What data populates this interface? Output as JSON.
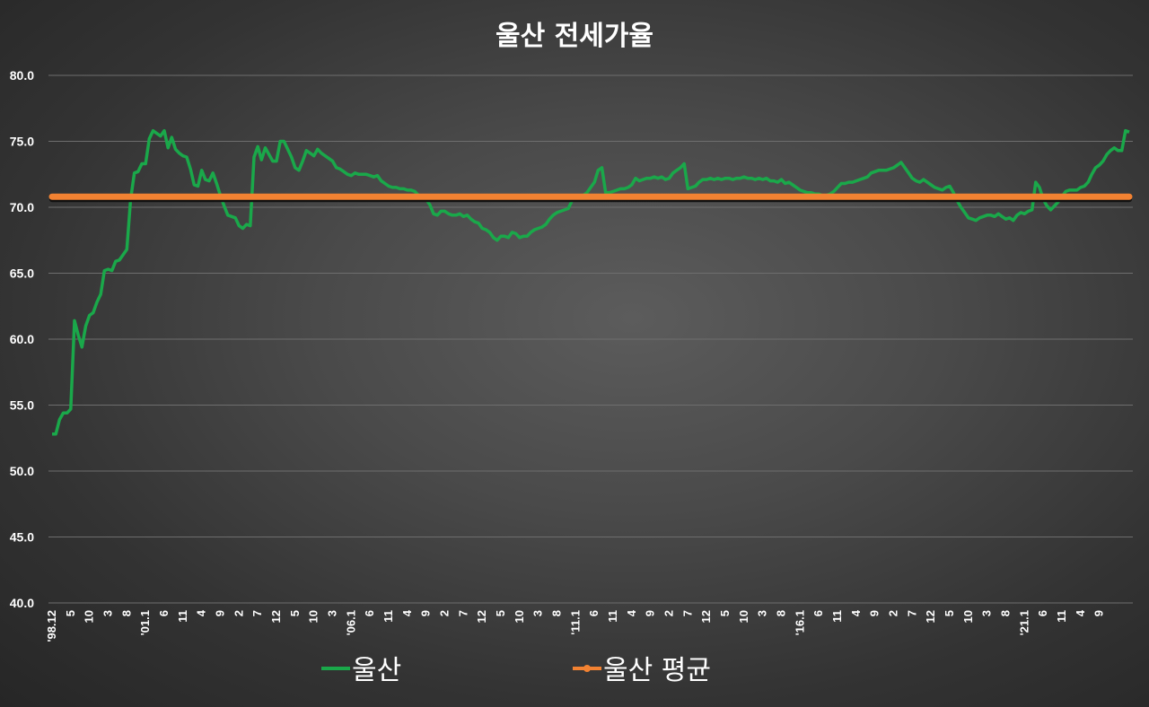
{
  "chart_data": {
    "type": "line",
    "title": "울산 전세가율",
    "ylim": [
      40,
      80
    ],
    "yticks": [
      "80.0",
      "75.0",
      "70.0",
      "65.0",
      "60.0",
      "55.0",
      "50.0",
      "45.0",
      "40.0"
    ],
    "x_tick_labels": [
      "'98.12",
      "5",
      "10",
      "3",
      "8",
      "'01.1",
      "6",
      "11",
      "4",
      "9",
      "2",
      "7",
      "12",
      "5",
      "10",
      "3",
      "'06.1",
      "6",
      "11",
      "4",
      "9",
      "2",
      "7",
      "12",
      "5",
      "10",
      "3",
      "8",
      "'11.1",
      "6",
      "11",
      "4",
      "9",
      "2",
      "7",
      "12",
      "5",
      "10",
      "3",
      "8",
      "'16.1",
      "6",
      "11",
      "4",
      "9",
      "2",
      "7",
      "12",
      "5",
      "10",
      "3",
      "8",
      "'21.1",
      "6",
      "11",
      "4",
      "9"
    ],
    "grid": "horizontal",
    "legend_position": "bottom",
    "series": [
      {
        "name": "울산",
        "color": "#1aa84a",
        "values": [
          52.8,
          52.8,
          53.9,
          54.4,
          54.4,
          54.7,
          61.4,
          60.3,
          59.4,
          61.0,
          61.8,
          62.0,
          62.8,
          63.4,
          65.2,
          65.3,
          65.2,
          65.9,
          66.0,
          66.4,
          66.8,
          70.6,
          72.6,
          72.7,
          73.3,
          73.3,
          75.2,
          75.8,
          75.6,
          75.4,
          75.8,
          74.5,
          75.3,
          74.4,
          74.1,
          73.9,
          73.8,
          72.9,
          71.7,
          71.6,
          72.8,
          72.1,
          72.0,
          72.6,
          71.8,
          70.9,
          70.1,
          69.4,
          69.3,
          69.2,
          68.6,
          68.4,
          68.7,
          68.6,
          73.8,
          74.6,
          73.6,
          74.5,
          74.0,
          73.5,
          73.5,
          75.0,
          75.0,
          74.4,
          73.8,
          73.0,
          72.8,
          73.5,
          74.3,
          74.1,
          73.9,
          74.4,
          74.1,
          73.9,
          73.7,
          73.5,
          73.0,
          72.9,
          72.7,
          72.5,
          72.4,
          72.6,
          72.5,
          72.5,
          72.5,
          72.4,
          72.3,
          72.4,
          72.0,
          71.8,
          71.6,
          71.5,
          71.5,
          71.4,
          71.4,
          71.3,
          71.3,
          71.2,
          70.9,
          70.6,
          70.6,
          70.2,
          69.5,
          69.4,
          69.7,
          69.7,
          69.5,
          69.4,
          69.4,
          69.5,
          69.3,
          69.4,
          69.1,
          68.9,
          68.8,
          68.4,
          68.3,
          68.1,
          67.7,
          67.5,
          67.8,
          67.8,
          67.7,
          68.1,
          68.0,
          67.7,
          67.8,
          67.8,
          68.1,
          68.3,
          68.4,
          68.5,
          68.7,
          69.1,
          69.4,
          69.6,
          69.7,
          69.8,
          69.9,
          70.5,
          70.6,
          70.7,
          70.9,
          71.1,
          71.5,
          71.9,
          72.8,
          73.0,
          71.1,
          71.1,
          71.2,
          71.3,
          71.4,
          71.4,
          71.5,
          71.7,
          72.2,
          72.0,
          72.1,
          72.2,
          72.2,
          72.3,
          72.2,
          72.3,
          72.1,
          72.2,
          72.6,
          72.8,
          73.0,
          73.3,
          71.4,
          71.5,
          71.6,
          71.9,
          72.1,
          72.1,
          72.2,
          72.1,
          72.2,
          72.1,
          72.2,
          72.2,
          72.1,
          72.2,
          72.2,
          72.3,
          72.2,
          72.2,
          72.1,
          72.2,
          72.1,
          72.2,
          72.0,
          72.0,
          71.9,
          72.1,
          71.8,
          71.9,
          71.7,
          71.5,
          71.3,
          71.2,
          71.1,
          71.1,
          71.0,
          71.0,
          70.9,
          70.9,
          71.0,
          71.2,
          71.5,
          71.8,
          71.8,
          71.9,
          71.9,
          72.0,
          72.1,
          72.2,
          72.3,
          72.6,
          72.7,
          72.8,
          72.8,
          72.8,
          72.9,
          73.0,
          73.2,
          73.4,
          73.0,
          72.6,
          72.2,
          72.0,
          71.9,
          72.1,
          71.9,
          71.7,
          71.5,
          71.4,
          71.3,
          71.5,
          71.6,
          71.1,
          70.5,
          70.0,
          69.6,
          69.2,
          69.1,
          69.0,
          69.2,
          69.3,
          69.4,
          69.4,
          69.3,
          69.5,
          69.3,
          69.1,
          69.2,
          69.0,
          69.4,
          69.6,
          69.5,
          69.7,
          69.8,
          71.9,
          71.5,
          70.6,
          70.1,
          69.8,
          70.1,
          70.4,
          70.8,
          71.2,
          71.3,
          71.3,
          71.3,
          71.5,
          71.6,
          71.9,
          72.5,
          73.0,
          73.2,
          73.5,
          74.0,
          74.3,
          74.5,
          74.3,
          74.3,
          75.8,
          75.7
        ]
      },
      {
        "name": "울산 평균",
        "color": "#f28232",
        "value": 70.8
      }
    ]
  }
}
